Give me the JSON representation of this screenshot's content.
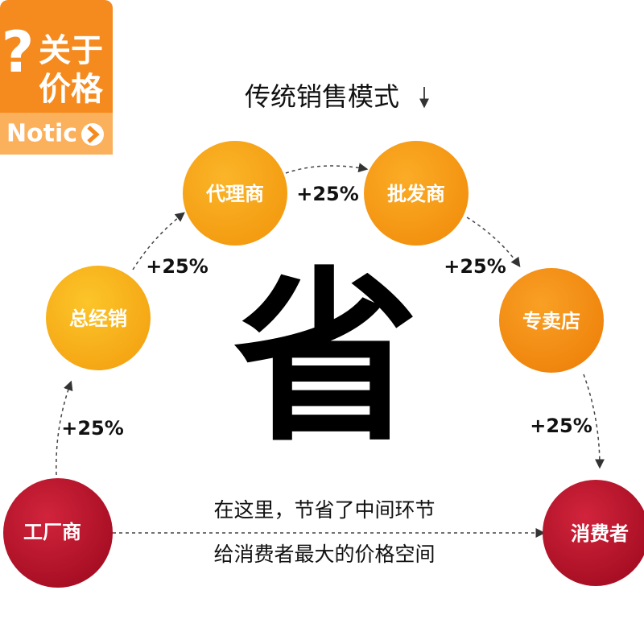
{
  "badge": {
    "line1": "关于",
    "line2": "价格",
    "notic": "Notic"
  },
  "title": "传统销售模式",
  "center_char": "省",
  "nodes": [
    {
      "label": "工厂商"
    },
    {
      "label": "总经销"
    },
    {
      "label": "代理商"
    },
    {
      "label": "批发商"
    },
    {
      "label": "专卖店"
    },
    {
      "label": "消费者"
    }
  ],
  "edges": [
    {
      "label": "+25%"
    },
    {
      "label": "+25%"
    },
    {
      "label": "+25%"
    },
    {
      "label": "+25%"
    },
    {
      "label": "+25%"
    }
  ],
  "message": [
    "在这里，节省了中间环节",
    "给消费者最大的价格空间"
  ]
}
